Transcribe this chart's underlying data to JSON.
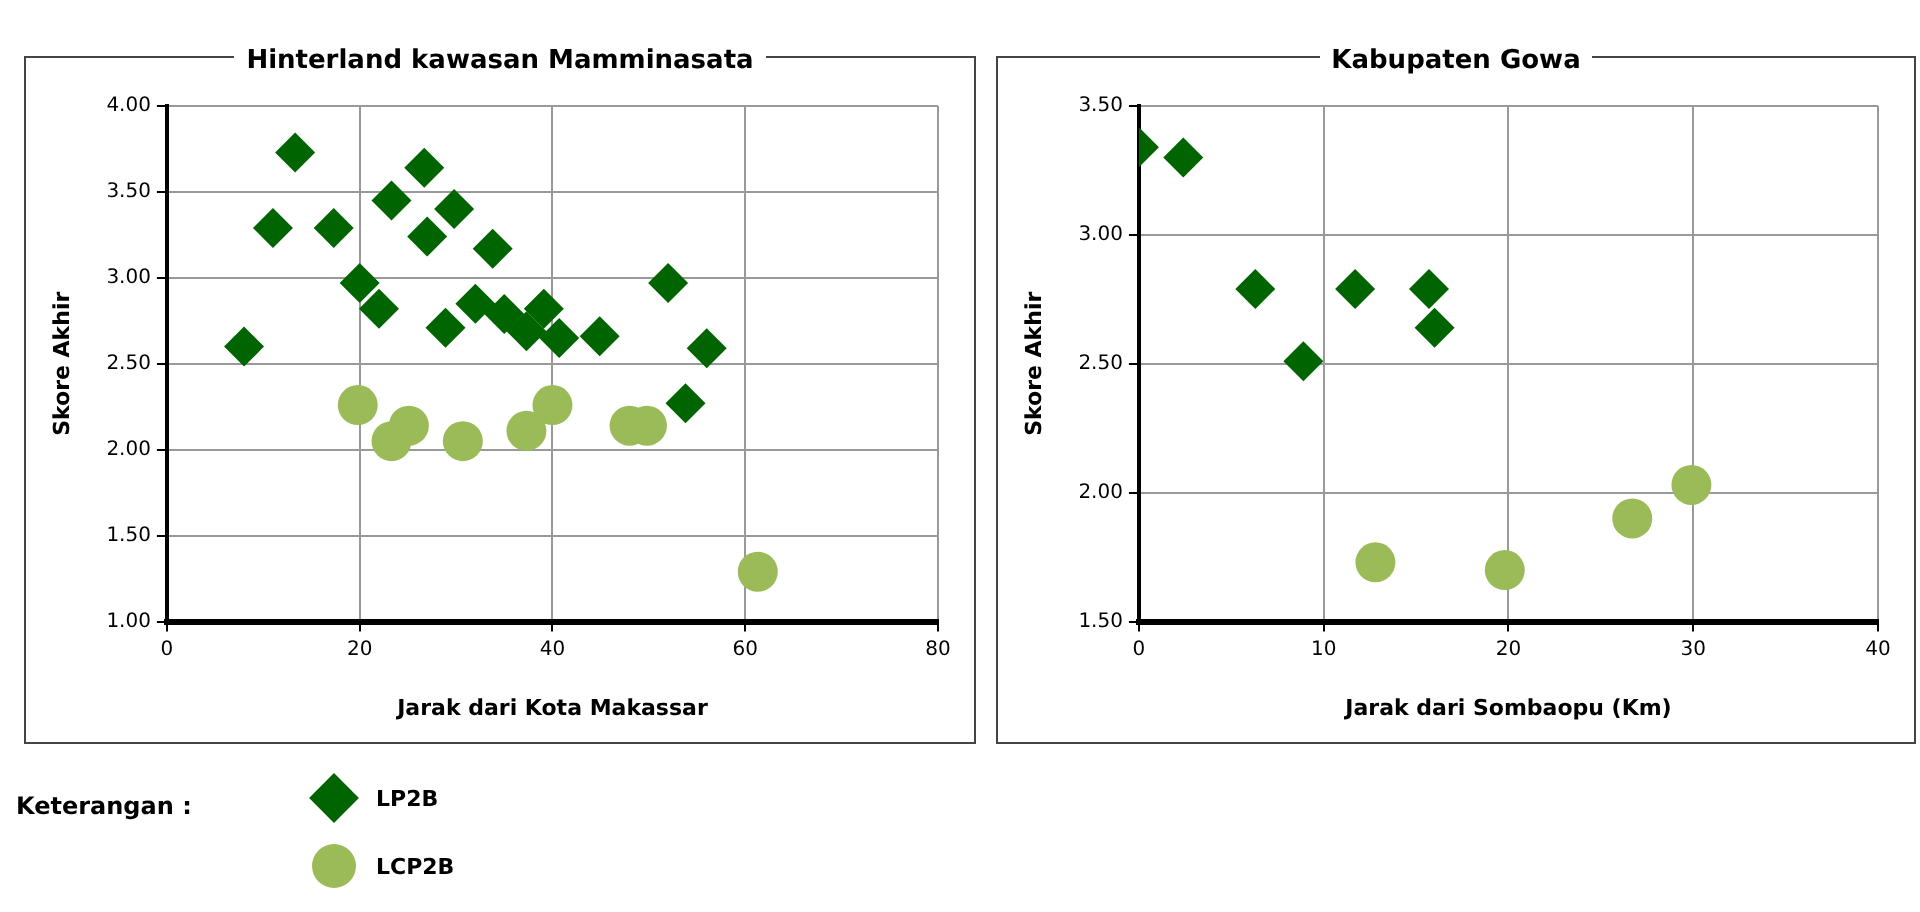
{
  "chart_data": [
    {
      "type": "scatter",
      "title": "Hinterland kawasan Mamminasata",
      "xlabel": "Jarak dari Kota Makassar",
      "ylabel": "Skore Akhir",
      "legend": "bottom",
      "legend_title": "Keterangan :",
      "grid": true,
      "xlim": [
        0,
        80
      ],
      "xticks": [
        0,
        20,
        40,
        60,
        80
      ],
      "ylim": [
        1,
        4
      ],
      "yticks": [
        {
          "value": 1,
          "label": "1.00"
        },
        {
          "value": 1.5,
          "label": "1.50"
        },
        {
          "value": 2,
          "label": "2.00"
        },
        {
          "value": 2.5,
          "label": "2.50"
        },
        {
          "value": 3,
          "label": "3.00"
        },
        {
          "value": 3.5,
          "label": "3.50"
        },
        {
          "value": 4,
          "label": "4.00"
        }
      ],
      "series": [
        {
          "name": "LP2B",
          "color": "#006400",
          "marker": "diamond",
          "x": [
            8,
            13.3,
            11,
            17.3,
            20,
            22,
            23.3,
            26.7,
            27,
            29.8,
            28.9,
            32,
            33.8,
            35,
            37.3,
            39.1,
            40.7,
            44.9,
            52,
            56,
            53.8
          ],
          "values": [
            2.6,
            3.73,
            3.29,
            3.29,
            2.97,
            2.82,
            3.45,
            3.64,
            3.24,
            3.4,
            2.71,
            2.85,
            3.17,
            2.79,
            2.69,
            2.82,
            2.65,
            2.66,
            2.97,
            2.59,
            2.27
          ]
        },
        {
          "name": "LCP2B",
          "color": "#9bbb59",
          "marker": "circle",
          "x": [
            19.8,
            25.1,
            23.3,
            30.7,
            37.3,
            40,
            48,
            49.8,
            61.3
          ],
          "values": [
            2.26,
            2.14,
            2.05,
            2.05,
            2.11,
            2.26,
            2.14,
            2.14,
            1.29
          ]
        }
      ]
    },
    {
      "type": "scatter",
      "title": "Kabupaten Gowa",
      "xlabel": "Jarak dari Sombaopu (Km)",
      "ylabel": "Skore Akhir",
      "grid": true,
      "xlim": [
        0,
        40
      ],
      "xticks": [
        0,
        10,
        20,
        30,
        40
      ],
      "ylim": [
        1.5,
        3.5
      ],
      "yticks": [
        {
          "value": 1.5,
          "label": "1.50"
        },
        {
          "value": 2,
          "label": "2.00"
        },
        {
          "value": 2.5,
          "label": "2.50"
        },
        {
          "value": 3,
          "label": "3.00"
        },
        {
          "value": 3.5,
          "label": "3.50"
        }
      ],
      "series": [
        {
          "color": "#006400",
          "marker": "diamond",
          "x": [
            0,
            2.4,
            6.3,
            8.9,
            11.7,
            15.7,
            16
          ],
          "values": [
            3.34,
            3.3,
            2.79,
            2.51,
            2.79,
            2.79,
            2.64
          ]
        },
        {
          "color": "#9bbb59",
          "marker": "circle",
          "x": [
            12.8,
            19.8,
            26.7,
            29.9
          ],
          "values": [
            1.73,
            1.7,
            1.9,
            2.03
          ]
        }
      ]
    }
  ]
}
